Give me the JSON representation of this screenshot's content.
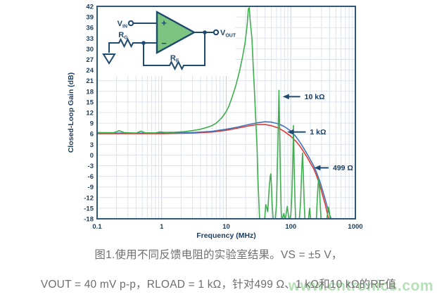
{
  "figure": {
    "caption_line1": "图1.使用不同反馈电阻的实验室结果。VS = ±5 V，",
    "caption_line2": "VOUT = 40 mV p-p，RLOAD = 1 kΩ，针对499 Ω、1 kΩ和10 kΩ的RF值",
    "watermark": "www.cntronics.com"
  },
  "circuit": {
    "vin": {
      "main": "V",
      "sub": "IN"
    },
    "vout": {
      "main": "V",
      "sub": "OUT"
    },
    "rg": {
      "main": "R",
      "sub": "G"
    },
    "rf": {
      "main": "R",
      "sub": "F"
    },
    "opamp_plus": "+",
    "opamp_minus": "−"
  },
  "style": {
    "frame_color": "#2e5677",
    "grid_major_color": "#c6d1dd",
    "grid_minor_color": "#dde3eb",
    "wire_color": "#1f4a70",
    "opamp_fill": "#7cc47f",
    "watermark_color": "#8ecf92",
    "caption_color": "#6e6e6e"
  },
  "chart_data": {
    "type": "line",
    "title": "",
    "xlabel": "Frequency (MHz)",
    "ylabel": "Closed-Loop Gain (dB)",
    "x_scale": "log",
    "xlim": [
      0.1,
      1000
    ],
    "ylim": [
      -18,
      42
    ],
    "y_tick_step": 3,
    "x_ticks": [
      0.1,
      1,
      10,
      100,
      1000
    ],
    "x_tick_labels": [
      "0.1",
      "1",
      "10",
      "100",
      "1000"
    ],
    "grid": true,
    "legend": "inline annotations",
    "series": [
      {
        "name": "499 Ω",
        "color": "#e03a35",
        "points": [
          [
            0.1,
            6.05
          ],
          [
            1,
            6.05
          ],
          [
            3,
            6.2
          ],
          [
            6,
            6.5
          ],
          [
            10,
            7.0
          ],
          [
            15,
            7.6
          ],
          [
            22,
            8.2
          ],
          [
            30,
            8.6
          ],
          [
            40,
            8.6
          ],
          [
            50,
            8.3
          ],
          [
            65,
            7.6
          ],
          [
            80,
            6.6
          ],
          [
            100,
            5.3
          ],
          [
            120,
            3.9
          ],
          [
            140,
            2.4
          ],
          [
            160,
            0.8
          ],
          [
            180,
            -0.7
          ],
          [
            200,
            -2.2
          ],
          [
            225,
            -3.8
          ],
          [
            250,
            -5.8
          ],
          [
            280,
            -8.4
          ],
          [
            310,
            -11.2
          ],
          [
            340,
            -13.8
          ],
          [
            365,
            -16.2
          ],
          [
            385,
            -18.0
          ],
          [
            398,
            -18.9
          ]
        ]
      },
      {
        "name": "1 kΩ",
        "color": "#4273b9",
        "points": [
          [
            0.1,
            6.2
          ],
          [
            1,
            6.2
          ],
          [
            3,
            6.35
          ],
          [
            6,
            6.7
          ],
          [
            10,
            7.3
          ],
          [
            15,
            7.9
          ],
          [
            22,
            8.6
          ],
          [
            30,
            9.1
          ],
          [
            40,
            9.4
          ],
          [
            50,
            9.3
          ],
          [
            65,
            8.8
          ],
          [
            80,
            8.0
          ],
          [
            100,
            6.8
          ],
          [
            120,
            5.2
          ],
          [
            140,
            3.5
          ],
          [
            160,
            1.8
          ],
          [
            180,
            0.2
          ],
          [
            200,
            -1.3
          ],
          [
            225,
            -3.0
          ],
          [
            250,
            -4.9
          ],
          [
            280,
            -7.3
          ],
          [
            310,
            -9.9
          ],
          [
            340,
            -12.4
          ],
          [
            370,
            -14.9
          ],
          [
            400,
            -16.9
          ],
          [
            425,
            -18.2
          ],
          [
            438,
            -18.9
          ]
        ]
      },
      {
        "name": "10 kΩ",
        "color": "#3fae4e",
        "points": [
          [
            0.1,
            6.35
          ],
          [
            0.18,
            6.3
          ],
          [
            0.22,
            6.9
          ],
          [
            0.26,
            6.35
          ],
          [
            0.4,
            6.2
          ],
          [
            0.48,
            6.75
          ],
          [
            0.55,
            6.3
          ],
          [
            0.8,
            6.25
          ],
          [
            0.95,
            6.55
          ],
          [
            1.1,
            6.4
          ],
          [
            1.6,
            6.45
          ],
          [
            2.2,
            6.6
          ],
          [
            3,
            6.9
          ],
          [
            4,
            7.3
          ],
          [
            5,
            7.8
          ],
          [
            6,
            8.3
          ],
          [
            7,
            9.0
          ],
          [
            8.5,
            10.5
          ],
          [
            10,
            12.3
          ],
          [
            11,
            13.8
          ],
          [
            12.4,
            16.5
          ],
          [
            14,
            19.5
          ],
          [
            16,
            23.5
          ],
          [
            18,
            28
          ],
          [
            19.5,
            31.5
          ],
          [
            21,
            36.5
          ],
          [
            22,
            41.3
          ],
          [
            22.8,
            41.6
          ],
          [
            23.5,
            38
          ],
          [
            25,
            33
          ],
          [
            26,
            26
          ],
          [
            27,
            20
          ],
          [
            28.5,
            11
          ],
          [
            30,
            2
          ],
          [
            31,
            -7
          ],
          [
            32,
            -13
          ],
          [
            33,
            -19
          ],
          [
            39,
            -19
          ],
          [
            41,
            -14
          ],
          [
            44,
            -16
          ],
          [
            46,
            -10
          ],
          [
            48,
            -6
          ],
          [
            49,
            -5.3
          ],
          [
            50,
            -8
          ],
          [
            51.5,
            -14
          ],
          [
            53,
            -17.8
          ],
          [
            57,
            -18.6
          ],
          [
            60,
            -14
          ],
          [
            61.5,
            -6
          ],
          [
            63,
            2
          ],
          [
            64.5,
            12
          ],
          [
            65.5,
            18.3
          ],
          [
            66.5,
            12
          ],
          [
            68,
            0
          ],
          [
            69.5,
            -9
          ],
          [
            71,
            -16
          ],
          [
            73,
            -18.6
          ],
          [
            78,
            -16.5
          ],
          [
            82,
            -18.4
          ],
          [
            88,
            -14.5
          ],
          [
            92,
            -17
          ],
          [
            95,
            -18.6
          ],
          [
            100,
            -17
          ],
          [
            104,
            -11
          ],
          [
            107,
            -3
          ],
          [
            109,
            4
          ],
          [
            110,
            8.3
          ],
          [
            111.5,
            2
          ],
          [
            113.5,
            -6
          ],
          [
            116,
            -13
          ],
          [
            119,
            -18.6
          ],
          [
            135,
            -18.6
          ],
          [
            142,
            -13
          ],
          [
            147,
            -5
          ],
          [
            152,
            0.6
          ],
          [
            156,
            -5
          ],
          [
            161,
            -13
          ],
          [
            166,
            -18.6
          ],
          [
            188,
            -18.6
          ],
          [
            193,
            -16
          ],
          [
            196,
            -15
          ],
          [
            200,
            -17
          ],
          [
            205,
            -18.8
          ],
          [
            248,
            -18.8
          ],
          [
            258,
            -12
          ],
          [
            265,
            -8
          ],
          [
            272,
            -6.7
          ],
          [
            279,
            -10
          ],
          [
            287,
            -15
          ],
          [
            295,
            -18.8
          ],
          [
            360,
            -18.8
          ],
          [
            372,
            -16
          ],
          [
            385,
            -14.7
          ],
          [
            398,
            -16.5
          ],
          [
            410,
            -18.8
          ]
        ]
      }
    ],
    "annotations": [
      {
        "label": "10 kΩ",
        "tip": [
          75,
          16.5
        ],
        "tail": [
          140,
          16.5
        ]
      },
      {
        "label": "1 kΩ",
        "tip": [
          88,
          6.5
        ],
        "tail": [
          170,
          6.5
        ]
      },
      {
        "label": "499 Ω",
        "tip": [
          230,
          -3.6
        ],
        "tail": [
          385,
          -3.6
        ]
      }
    ]
  }
}
